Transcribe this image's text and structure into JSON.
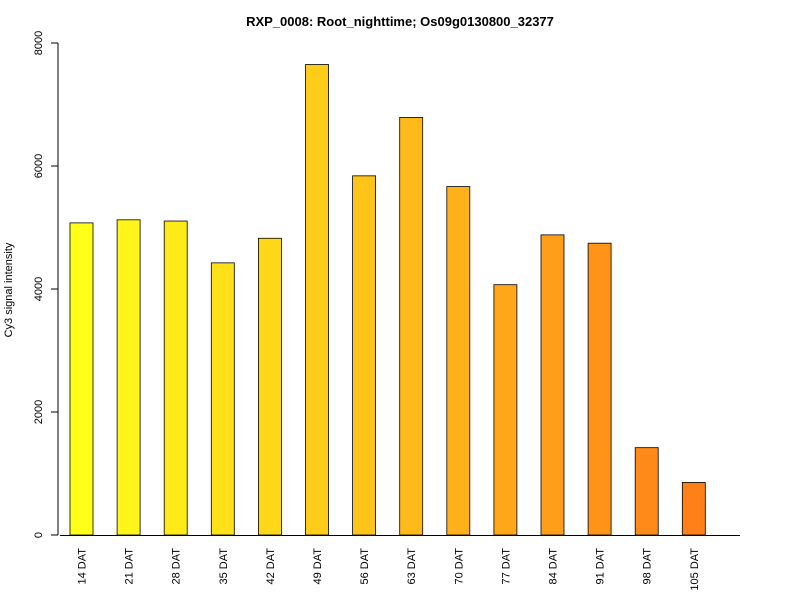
{
  "chart_data": {
    "type": "bar",
    "title": "RXP_0008: Root_nighttime; Os09g0130800_32377",
    "xlabel": "",
    "ylabel": "Cy3 signal intensity",
    "ylim": [
      0,
      8000
    ],
    "yticks": [
      0,
      2000,
      4000,
      6000,
      8000
    ],
    "categories": [
      "14 DAT",
      "21 DAT",
      "28 DAT",
      "35 DAT",
      "42 DAT",
      "49 DAT",
      "56 DAT",
      "63 DAT",
      "70 DAT",
      "77 DAT",
      "84 DAT",
      "91 DAT",
      "98 DAT",
      "105 DAT"
    ],
    "values": [
      5075,
      5125,
      5105,
      4425,
      4825,
      7650,
      5840,
      6790,
      5665,
      4070,
      4880,
      4745,
      1420,
      855
    ],
    "colors": [
      "#FFFF19",
      "#FFF519",
      "#FFEA19",
      "#FFE119",
      "#FFD719",
      "#FFCC19",
      "#FFC419",
      "#FFBA19",
      "#FFB119",
      "#FFA719",
      "#FF9E19",
      "#FF9419",
      "#FF8A19",
      "#FF8019"
    ],
    "grid": false,
    "legend": "none"
  }
}
